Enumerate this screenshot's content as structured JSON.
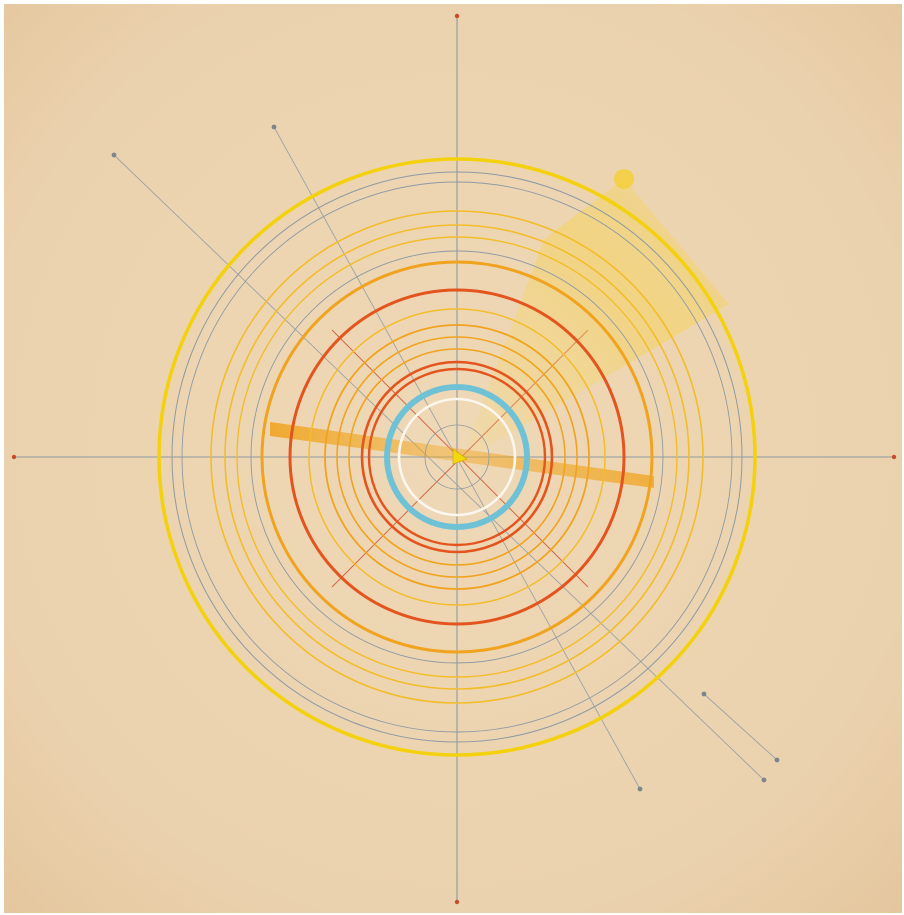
{
  "artwork": {
    "description_text": "",
    "colors": {
      "paper": "#ecd4b2",
      "paper_dark": "#e4c79f",
      "yellow": "#f3d10f",
      "yellow_orange": "#f2bd2a",
      "orange": "#f0a31f",
      "red_orange": "#e3541e",
      "blue": "#6fc2d6",
      "white": "#fbf6ee",
      "grey_line": "#8e9aa1",
      "axis_tick": "#c94a2a"
    }
  }
}
